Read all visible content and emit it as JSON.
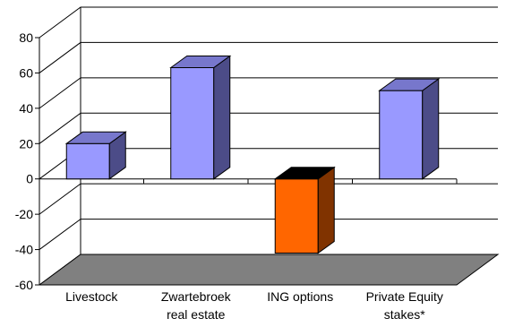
{
  "chart_data": {
    "type": "bar",
    "title": "",
    "xlabel": "",
    "ylabel": "",
    "categories": [
      [
        "Livestock"
      ],
      [
        "Zwartebroek",
        "real estate"
      ],
      [
        "ING options"
      ],
      [
        "Private Equity",
        "stakes*"
      ]
    ],
    "values": [
      20,
      63,
      -42,
      50
    ],
    "ylim": [
      -60,
      80
    ],
    "yticks": [
      80,
      60,
      40,
      20,
      0,
      -20,
      -40,
      -60
    ],
    "grid": true,
    "style": "3d",
    "colors": {
      "positive_front": "#9999ff",
      "positive_side": "#4c4c88",
      "positive_top": "#7777cc",
      "negative_front": "#ff6600",
      "negative_side": "#803300",
      "negative_top": "#000000",
      "floor": "#808080",
      "grid": "#000000"
    }
  }
}
